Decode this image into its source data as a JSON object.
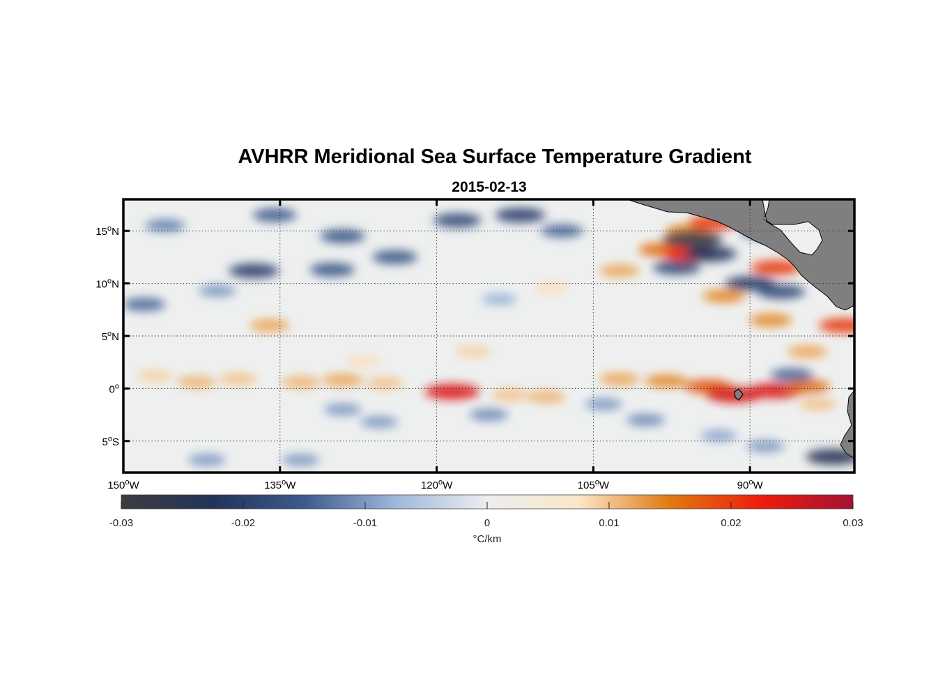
{
  "chart_data": {
    "type": "heatmap",
    "title": "AVHRR Meridional Sea Surface Temperature Gradient",
    "subtitle": "2015-02-13",
    "x_axis": {
      "range": [
        -150,
        -80
      ],
      "ticks": [
        {
          "value": -150,
          "deg": "150",
          "hemi": "W"
        },
        {
          "value": -135,
          "deg": "135",
          "hemi": "W"
        },
        {
          "value": -120,
          "deg": "120",
          "hemi": "W"
        },
        {
          "value": -105,
          "deg": "105",
          "hemi": "W"
        },
        {
          "value": -90,
          "deg": "90",
          "hemi": "W"
        }
      ]
    },
    "y_axis": {
      "range": [
        -8,
        18
      ],
      "ticks": [
        {
          "value": 15,
          "deg": "15",
          "hemi": "N"
        },
        {
          "value": 10,
          "deg": "10",
          "hemi": "N"
        },
        {
          "value": 5,
          "deg": "5",
          "hemi": "N"
        },
        {
          "value": 0,
          "deg": "0",
          "hemi": ""
        },
        {
          "value": -5,
          "deg": "5",
          "hemi": "S"
        }
      ]
    },
    "grid": true,
    "colorbar": {
      "label": "°C/km",
      "range": [
        -0.03,
        0.03
      ],
      "ticks": [
        {
          "value": -0.03,
          "label": "-0.03"
        },
        {
          "value": -0.02,
          "label": "-0.02"
        },
        {
          "value": -0.01,
          "label": "-0.01"
        },
        {
          "value": 0,
          "label": "0"
        },
        {
          "value": 0.01,
          "label": "0.01"
        },
        {
          "value": 0.02,
          "label": "0.02"
        },
        {
          "value": 0.03,
          "label": "0.03"
        }
      ],
      "colors": [
        "#3d3d3f",
        "#22335a",
        "#3d5a8c",
        "#9fb7dc",
        "#eceeee",
        "#fbe6c8",
        "#e07a10",
        "#ee1c0c",
        "#a31233"
      ]
    },
    "features": [
      {
        "lon": -147,
        "lat": 1.2,
        "value": 0.009
      },
      {
        "lon": -143,
        "lat": 0.6,
        "value": 0.011
      },
      {
        "lon": -139,
        "lat": 0.9,
        "value": 0.01
      },
      {
        "lon": -136,
        "lat": 6.0,
        "value": 0.012
      },
      {
        "lon": -133,
        "lat": 0.6,
        "value": 0.011
      },
      {
        "lon": -129,
        "lat": 0.8,
        "value": 0.012
      },
      {
        "lon": -125,
        "lat": 0.5,
        "value": 0.01
      },
      {
        "lon": -127,
        "lat": 2.6,
        "value": 0.008
      },
      {
        "lon": -118.5,
        "lat": -0.3,
        "value": 0.024
      },
      {
        "lon": -116.5,
        "lat": 3.5,
        "value": 0.009
      },
      {
        "lon": -113,
        "lat": -0.6,
        "value": 0.01
      },
      {
        "lon": -109.5,
        "lat": -0.8,
        "value": 0.011
      },
      {
        "lon": -109,
        "lat": 9.6,
        "value": 0.008
      },
      {
        "lon": -102.5,
        "lat": 0.9,
        "value": 0.012
      },
      {
        "lon": -98,
        "lat": 0.7,
        "value": 0.014
      },
      {
        "lon": -94,
        "lat": 0.2,
        "value": 0.018
      },
      {
        "lon": -91.5,
        "lat": -0.6,
        "value": 0.025
      },
      {
        "lon": -87.5,
        "lat": -0.2,
        "value": 0.024
      },
      {
        "lon": -84.5,
        "lat": 0.2,
        "value": 0.016
      },
      {
        "lon": -102.5,
        "lat": 11.2,
        "value": 0.012
      },
      {
        "lon": -98.5,
        "lat": 13.2,
        "value": 0.016
      },
      {
        "lon": -96,
        "lat": 15.0,
        "value": 0.014
      },
      {
        "lon": -95.8,
        "lat": 12.8,
        "value": 0.022
      },
      {
        "lon": -93.5,
        "lat": 15.8,
        "value": 0.02
      },
      {
        "lon": -92.5,
        "lat": 8.8,
        "value": 0.014
      },
      {
        "lon": -87.5,
        "lat": 11.5,
        "value": 0.02
      },
      {
        "lon": -88,
        "lat": 6.5,
        "value": 0.014
      },
      {
        "lon": -84.5,
        "lat": 3.5,
        "value": 0.012
      },
      {
        "lon": -81,
        "lat": 6.0,
        "value": 0.02
      },
      {
        "lon": -83.5,
        "lat": -1.5,
        "value": 0.01
      },
      {
        "lon": -135.5,
        "lat": 16.5,
        "value": -0.015
      },
      {
        "lon": -129,
        "lat": 14.5,
        "value": -0.016
      },
      {
        "lon": -137.5,
        "lat": 11.2,
        "value": -0.02
      },
      {
        "lon": -130,
        "lat": 11.3,
        "value": -0.016
      },
      {
        "lon": -124,
        "lat": 12.5,
        "value": -0.016
      },
      {
        "lon": -118,
        "lat": 16.0,
        "value": -0.018
      },
      {
        "lon": -112,
        "lat": 16.5,
        "value": -0.02
      },
      {
        "lon": -108,
        "lat": 15.0,
        "value": -0.014
      },
      {
        "lon": -146,
        "lat": 15.5,
        "value": -0.012
      },
      {
        "lon": -148,
        "lat": 8.0,
        "value": -0.014
      },
      {
        "lon": -141,
        "lat": 9.3,
        "value": -0.01
      },
      {
        "lon": -129,
        "lat": -2.0,
        "value": -0.01
      },
      {
        "lon": -115,
        "lat": -2.5,
        "value": -0.011
      },
      {
        "lon": -125.5,
        "lat": -3.2,
        "value": -0.01
      },
      {
        "lon": -104,
        "lat": -1.5,
        "value": -0.01
      },
      {
        "lon": -100,
        "lat": -3.0,
        "value": -0.011
      },
      {
        "lon": -93,
        "lat": -4.5,
        "value": -0.009
      },
      {
        "lon": -142,
        "lat": -6.8,
        "value": -0.01
      },
      {
        "lon": -133,
        "lat": -6.8,
        "value": -0.01
      },
      {
        "lon": -95.5,
        "lat": 14.2,
        "value": -0.028
      },
      {
        "lon": -93.8,
        "lat": 12.8,
        "value": -0.022
      },
      {
        "lon": -97,
        "lat": 11.5,
        "value": -0.018
      },
      {
        "lon": -90,
        "lat": 10.0,
        "value": -0.02
      },
      {
        "lon": -87,
        "lat": 9.2,
        "value": -0.018
      },
      {
        "lon": -86,
        "lat": 1.3,
        "value": -0.014
      },
      {
        "lon": -82,
        "lat": -6.5,
        "value": -0.024
      },
      {
        "lon": -89,
        "lat": 14.8,
        "value": -0.012
      },
      {
        "lon": -114,
        "lat": 8.5,
        "value": -0.008
      },
      {
        "lon": -88.5,
        "lat": -5.5,
        "value": -0.01
      }
    ]
  }
}
